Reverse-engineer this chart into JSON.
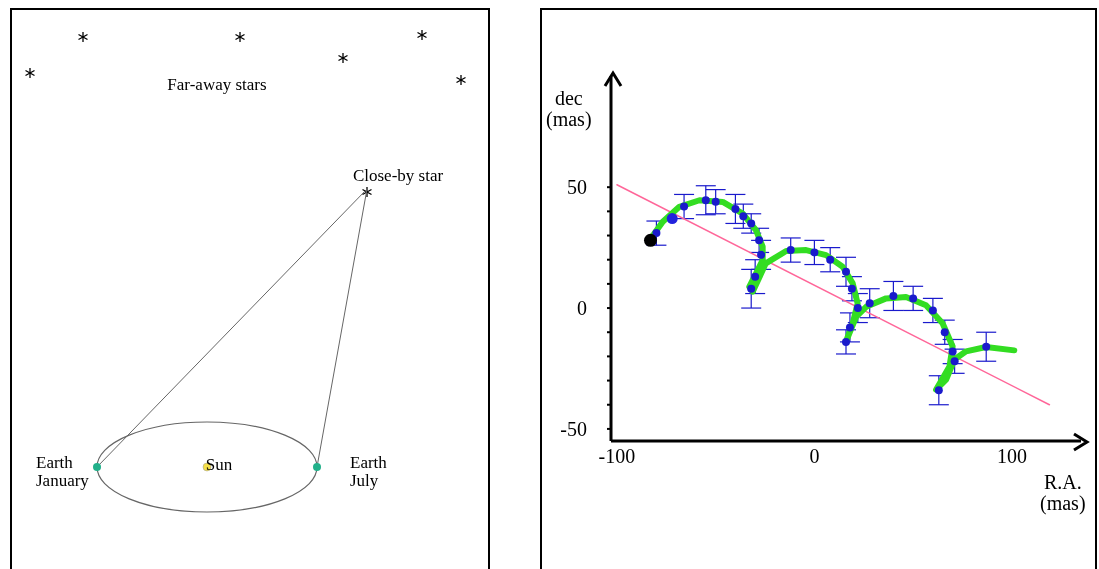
{
  "chart_data": [
    {
      "type": "other",
      "annotations": [
        "Far-away stars",
        "Close-by star",
        "Earth January",
        "Sun",
        "Earth July"
      ]
    },
    {
      "type": "scatter",
      "xlabel": "R.A. (mas)",
      "ylabel": "dec (mas)",
      "xlim": [
        -103,
        135
      ],
      "ylim": [
        -55,
        96
      ],
      "xticks": [
        -100,
        0,
        100
      ],
      "yticks": [
        -50,
        {
          "value": -40,
          "label": null
        },
        {
          "value": -30,
          "label": null
        },
        {
          "value": -20,
          "label": null
        },
        {
          "value": -10,
          "label": null
        },
        0,
        {
          "value": 10,
          "label": null
        },
        {
          "value": 20,
          "label": null
        },
        {
          "value": 30,
          "label": null
        },
        {
          "value": 40,
          "label": null
        },
        50
      ],
      "series": [
        {
          "type": "line",
          "color": "#ff6699",
          "marker": "none",
          "x": [
            -100,
            119
          ],
          "values": [
            51,
            -40
          ]
        },
        {
          "type": "line",
          "color": "#33dd22",
          "marker": "none",
          "x": [
            -83.5,
            -76.8,
            -68.4,
            -58.2,
            -46.4,
            -36.3,
            -29.6,
            -26.2,
            -26.2,
            -29.6,
            -33.0,
            -31.2,
            -24.6,
            -14.3,
            -4.2,
            5.9,
            14.3,
            19.4,
            21.9,
            19.4,
            16.0,
            21.1,
            26.2,
            36.3,
            46.4,
            56.5,
            64.9,
            70.0,
            68.4,
            61.6,
            66.7,
            70.9,
            76.8,
            86.9,
            101.2
          ],
          "values": [
            28.1,
            35.7,
            41.9,
            44.6,
            43.9,
            39.1,
            32.2,
            25.4,
            19.8,
            14.3,
            8.8,
            6.8,
            18.5,
            23.6,
            24.0,
            21.9,
            17.1,
            10.2,
            1.9,
            -6.3,
            -13.9,
            -3.6,
            0.5,
            4.0,
            4.6,
            1.2,
            -6.3,
            -15.9,
            -24.2,
            -33.8,
            -29.6,
            -21.3,
            -17.9,
            -16.1,
            -17.5
          ]
        },
        {
          "type": "scatter",
          "color": "#1a1acc",
          "marker": "circle",
          "x": [
            -80,
            -66,
            -55,
            -50,
            -40,
            -36,
            -32,
            -28,
            -27,
            -30,
            -32,
            -12,
            0,
            8,
            16,
            19,
            22,
            18,
            16,
            28,
            40,
            50,
            60,
            66,
            70,
            71,
            63,
            87
          ],
          "values": [
            31,
            42,
            44.6,
            44,
            41,
            38,
            35,
            28,
            22,
            13,
            8,
            24,
            23,
            20,
            15,
            8,
            0,
            -8,
            -14,
            2,
            5,
            4,
            -1,
            -10,
            -18,
            -22,
            -34,
            -16
          ],
          "errors": [
            5,
            5,
            6,
            5,
            6,
            5,
            4,
            5,
            6,
            7,
            8,
            5,
            5,
            5,
            6,
            5,
            6,
            6,
            5,
            6,
            6,
            5,
            5,
            5,
            5,
            5,
            6,
            6
          ]
        },
        {
          "type": "scatter",
          "color": "#2222dd",
          "marker": "circle",
          "x": [
            -72
          ],
          "values": [
            37
          ]
        },
        {
          "type": "scatter",
          "color": "#000000",
          "marker": "circle",
          "x": [
            -83
          ],
          "values": [
            28
          ]
        }
      ]
    }
  ]
}
